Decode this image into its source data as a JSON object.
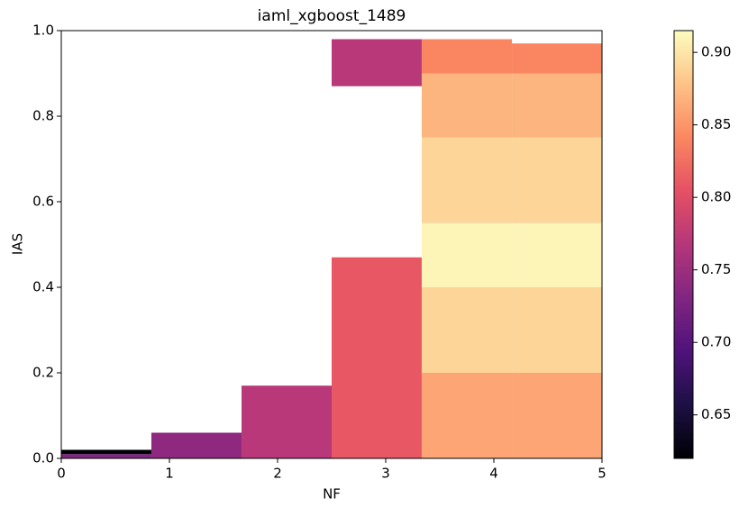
{
  "chart_data": {
    "type": "heatmap-bars",
    "title": "iaml_xgboost_1489",
    "x_label": "NF",
    "y_label": "IAS",
    "colormap": "magma",
    "xbins": [
      0,
      0.833,
      1.667,
      2.5,
      3.333,
      4.167,
      5
    ],
    "columns": [
      [
        {
          "y0": 0,
          "y1": 0.01,
          "value": 0.73
        },
        {
          "y0": 0.01,
          "y1": 0.02,
          "value": 0.62
        }
      ],
      [
        {
          "y0": 0,
          "y1": 0.06,
          "value": 0.74
        }
      ],
      [
        {
          "y0": 0,
          "y1": 0.17,
          "value": 0.77
        }
      ],
      [
        {
          "y0": 0,
          "y1": 0.47,
          "value": 0.81
        },
        {
          "y0": 0.87,
          "y1": 0.98,
          "value": 0.77
        }
      ],
      [
        {
          "y0": 0,
          "y1": 0.2,
          "value": 0.86
        },
        {
          "y0": 0.2,
          "y1": 0.4,
          "value": 0.89
        },
        {
          "y0": 0.4,
          "y1": 0.55,
          "value": 0.91
        },
        {
          "y0": 0.55,
          "y1": 0.75,
          "value": 0.89
        },
        {
          "y0": 0.75,
          "y1": 0.9,
          "value": 0.87
        },
        {
          "y0": 0.9,
          "y1": 0.98,
          "value": 0.84
        }
      ],
      [
        {
          "y0": 0,
          "y1": 0.2,
          "value": 0.86
        },
        {
          "y0": 0.2,
          "y1": 0.4,
          "value": 0.89
        },
        {
          "y0": 0.4,
          "y1": 0.55,
          "value": 0.91
        },
        {
          "y0": 0.55,
          "y1": 0.75,
          "value": 0.89
        },
        {
          "y0": 0.75,
          "y1": 0.9,
          "value": 0.87
        },
        {
          "y0": 0.9,
          "y1": 0.97,
          "value": 0.84
        }
      ]
    ],
    "xlim": [
      0,
      5
    ],
    "xticks": [
      0,
      1,
      2,
      3,
      4,
      5
    ],
    "ylim": [
      0,
      1
    ],
    "yticks": [
      {
        "value": 0,
        "label": "0.0"
      },
      {
        "value": 0.2,
        "label": "0.2"
      },
      {
        "value": 0.4,
        "label": "0.4"
      },
      {
        "value": 0.6,
        "label": "0.6"
      },
      {
        "value": 0.8,
        "label": "0.8"
      },
      {
        "value": 1,
        "label": "1.0"
      }
    ],
    "clim": [
      0.62,
      0.915
    ],
    "cticks": [
      0.65,
      {
        "value": 0.7,
        "label": "0.70"
      },
      0.75,
      {
        "value": 0.8,
        "label": "0.80"
      },
      0.85,
      {
        "value": 0.9,
        "label": "0.90"
      }
    ]
  }
}
